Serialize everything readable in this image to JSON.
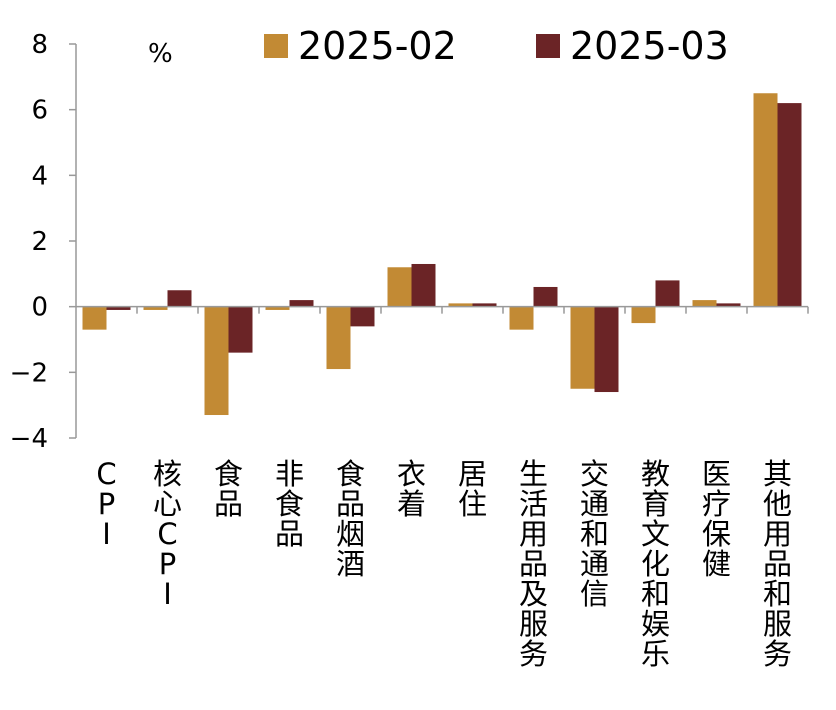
{
  "chart_data": {
    "type": "bar",
    "unit_label": "%",
    "categories": [
      "CPI",
      "核心CPI",
      "食品",
      "非食品",
      "食品烟酒",
      "衣着",
      "居住",
      "生活用品及服务",
      "交通和通信",
      "教育文化和娱乐",
      "医疗保健",
      "其他用品和服务"
    ],
    "series": [
      {
        "name": "2025-02",
        "color": "#C28A34",
        "values": [
          -0.7,
          -0.1,
          -3.3,
          -0.1,
          -1.9,
          1.2,
          0.1,
          -0.7,
          -2.5,
          -0.5,
          0.2,
          6.5
        ]
      },
      {
        "name": "2025-03",
        "color": "#6B2426",
        "values": [
          -0.1,
          0.5,
          -1.4,
          0.2,
          -0.6,
          1.3,
          0.1,
          0.6,
          -2.6,
          0.8,
          0.1,
          6.2
        ]
      }
    ],
    "ylim": [
      -4,
      8
    ],
    "yticks": [
      -4,
      -2,
      0,
      2,
      4,
      6,
      8
    ],
    "legend_position": "top",
    "grid": false
  }
}
